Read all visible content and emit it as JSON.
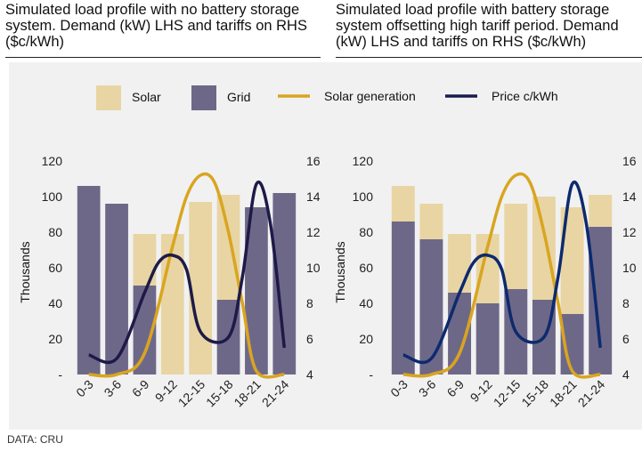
{
  "titles": {
    "left": "Simulated load profile with no battery storage system. Demand (kW) LHS and tariffs on RHS ($c/kWh)",
    "right": "Simulated load profile with battery storage system offsetting high tariff period. Demand (kW) LHS and tariffs on RHS ($c/kWh)"
  },
  "source": "DATA: CRU",
  "legend": [
    {
      "label": "Solar",
      "kind": "bar",
      "color": "#e8d5a3"
    },
    {
      "label": "Grid",
      "kind": "bar",
      "color": "#6e6888"
    },
    {
      "label": "Solar generation",
      "kind": "line",
      "color": "#d9a520"
    },
    {
      "label": "Price c/kWh",
      "kind": "line",
      "color": "#1a1a4e"
    }
  ],
  "colors": {
    "solar": "#e8d5a3",
    "grid": "#6e6888",
    "solar_line": "#d9a520",
    "price_left": "#1e1a48",
    "price_right": "#0d2a6e"
  },
  "chart_data": [
    {
      "type": "bar",
      "stacked": true,
      "categories": [
        "0-3",
        "3-6",
        "6-9",
        "9-12",
        "12-15",
        "15-18",
        "18-21",
        "21-24"
      ],
      "ylabel": "Thousands",
      "ylim": [
        0,
        120
      ],
      "yticks": [
        "-",
        "20",
        "40",
        "60",
        "80",
        "100",
        "120"
      ],
      "y2lim": [
        4,
        16
      ],
      "y2ticks": [
        "4",
        "6",
        "8",
        "10",
        "12",
        "14",
        "16"
      ],
      "series": [
        {
          "name": "Grid",
          "kind": "bar",
          "values": [
            106,
            96,
            50,
            0,
            0,
            42,
            94,
            102
          ]
        },
        {
          "name": "Solar",
          "kind": "bar",
          "values": [
            0,
            0,
            29,
            79,
            97,
            59,
            0,
            0
          ]
        },
        {
          "name": "Solar generation",
          "kind": "line",
          "axis": "left",
          "x": [
            0,
            1,
            2,
            3,
            3.5,
            4,
            4.5,
            5,
            5.5,
            6,
            7
          ],
          "values": [
            0,
            0,
            12,
            72,
            100,
            112,
            108,
            80,
            40,
            2,
            0
          ]
        },
        {
          "name": "Price c/kWh",
          "kind": "line",
          "axis": "right",
          "x": [
            0,
            1,
            2,
            2.5,
            3,
            3.5,
            4,
            5,
            5.5,
            6,
            6.5,
            7
          ],
          "values": [
            5.1,
            4.9,
            8.6,
            10.3,
            10.7,
            9.9,
            6.4,
            6.1,
            9.5,
            14.7,
            12.5,
            5.5
          ]
        }
      ]
    },
    {
      "type": "bar",
      "stacked": true,
      "categories": [
        "0-3",
        "3-6",
        "6-9",
        "9-12",
        "12-15",
        "15-18",
        "18-21",
        "21-24"
      ],
      "ylabel": "Thousands",
      "ylim": [
        0,
        120
      ],
      "yticks": [
        "-",
        "20",
        "40",
        "60",
        "80",
        "100",
        "120"
      ],
      "y2lim": [
        4,
        16
      ],
      "y2ticks": [
        "4",
        "6",
        "8",
        "10",
        "12",
        "14",
        "16"
      ],
      "series": [
        {
          "name": "Grid",
          "kind": "bar",
          "values": [
            86,
            76,
            46,
            40,
            48,
            42,
            34,
            83
          ]
        },
        {
          "name": "Solar",
          "kind": "bar",
          "values": [
            20,
            20,
            33,
            39,
            48,
            58,
            60,
            18
          ]
        },
        {
          "name": "Solar generation",
          "kind": "line",
          "axis": "left",
          "x": [
            0,
            1,
            2,
            3,
            3.5,
            4,
            4.5,
            5,
            5.5,
            6,
            7
          ],
          "values": [
            0,
            0,
            12,
            72,
            100,
            112,
            108,
            80,
            40,
            2,
            0
          ]
        },
        {
          "name": "Price c/kWh",
          "kind": "line",
          "axis": "right",
          "x": [
            0,
            1,
            2,
            2.5,
            3,
            3.5,
            4,
            5,
            5.5,
            6,
            6.5,
            7
          ],
          "values": [
            5.1,
            4.9,
            8.6,
            10.3,
            10.7,
            9.9,
            6.4,
            6.1,
            9.5,
            14.7,
            12.5,
            5.5
          ]
        }
      ]
    }
  ]
}
